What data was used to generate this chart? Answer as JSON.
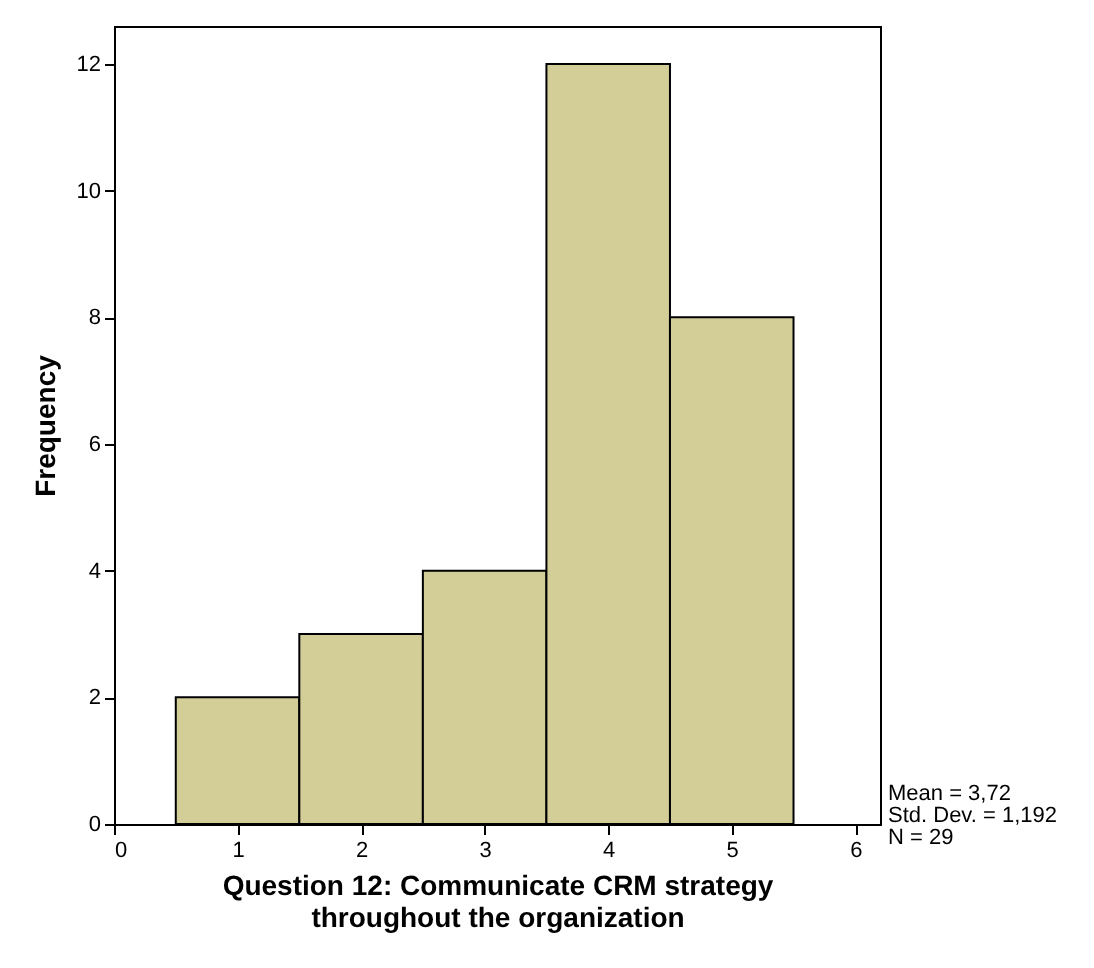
{
  "chart_data": {
    "type": "histogram",
    "xlabel": "Question 12: Communicate CRM strategy\nthroughout the organization",
    "ylabel": "Frequency",
    "bins": [
      0.5,
      1.5,
      2.5,
      3.5,
      4.5,
      5.5
    ],
    "values": [
      2,
      3,
      4,
      12,
      8
    ],
    "color": "#d3ce98",
    "xlim": [
      0,
      6.2
    ],
    "xticks": [
      0,
      1,
      2,
      3,
      4,
      5,
      6
    ],
    "ylim": [
      0,
      12.6
    ],
    "yticks": [
      0,
      2,
      4,
      6,
      8,
      10,
      12
    ],
    "grid": false,
    "annotations": [
      "Mean = 3,72",
      "Std. Dev. = 1,192",
      "N = 29"
    ]
  }
}
